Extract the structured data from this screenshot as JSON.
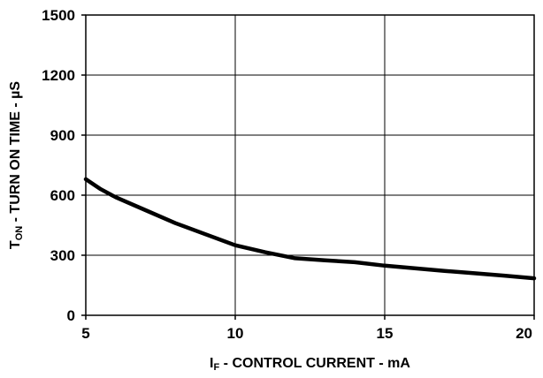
{
  "chart_data": {
    "type": "line",
    "title": "",
    "xlabel": {
      "main": "I",
      "sub": "F",
      "rest": " - CONTROL CURRENT - mA"
    },
    "ylabel": {
      "main": "T",
      "sub": "ON",
      "rest": " - TURN ON TIME - µS"
    },
    "xlim": [
      5,
      20
    ],
    "ylim": [
      0,
      1500
    ],
    "xticks": [
      5,
      10,
      15,
      20
    ],
    "yticks": [
      0,
      300,
      600,
      900,
      1200,
      1500
    ],
    "grid": true,
    "legend": "none",
    "series": [
      {
        "color": "#000000",
        "x": [
          5,
          5.5,
          6,
          7,
          8,
          9,
          10,
          11,
          12,
          13,
          14,
          15,
          16,
          17,
          18,
          19,
          20
        ],
        "y": [
          680,
          630,
          590,
          525,
          460,
          405,
          350,
          315,
          285,
          275,
          265,
          248,
          235,
          222,
          210,
          198,
          185
        ]
      }
    ]
  }
}
